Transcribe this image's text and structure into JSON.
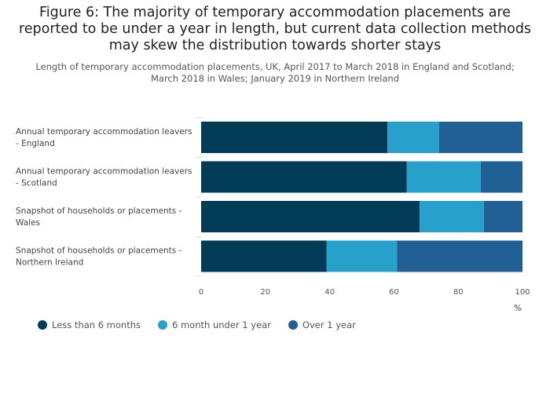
{
  "title": "Figure 6: The majority of temporary accommodation placements are reported to be under a year in length, but current data collection methods may skew the distribution towards shorter stays",
  "subtitle": "Length of temporary accommodation placements, UK, April 2017 to March 2018 in England and Scotland; March 2018 in Wales; January 2019 in Northern Ireland",
  "colors": {
    "less_than_6_months": "#003c57",
    "six_month_under_1_year": "#27a0cc",
    "over_1_year": "#206095"
  },
  "chart_data": {
    "type": "bar",
    "orientation": "horizontal",
    "stacked": true,
    "categories": [
      [
        "Annual temporary accommodation leavers",
        "- England"
      ],
      [
        "Annual temporary accommodation leavers",
        "- Scotland"
      ],
      [
        "Snapshot of households or placements -",
        "Wales"
      ],
      [
        "Snapshot of households or placements -",
        "Northern Ireland"
      ]
    ],
    "series": [
      {
        "name": "Less than 6 months",
        "values": [
          58,
          64,
          68,
          39
        ]
      },
      {
        "name": "6 month under 1 year",
        "values": [
          16,
          23,
          20,
          22
        ]
      },
      {
        "name": "Over 1 year",
        "values": [
          26,
          13,
          12,
          39
        ]
      }
    ],
    "xlim": [
      0,
      100
    ],
    "xticks": [
      0,
      20,
      40,
      60,
      80,
      100
    ],
    "xlabel": "%",
    "legend_position": "bottom-left",
    "grid": false
  }
}
